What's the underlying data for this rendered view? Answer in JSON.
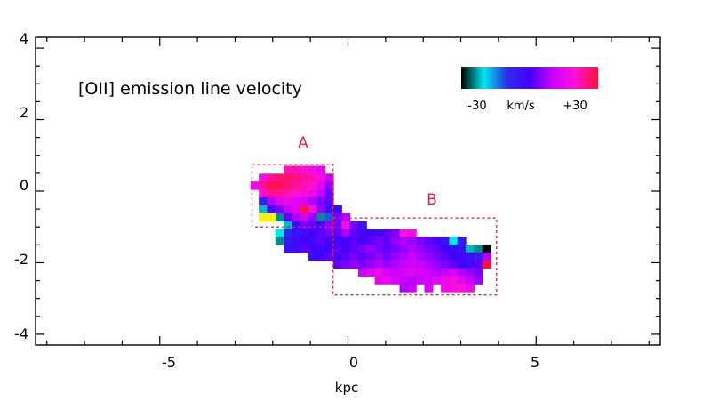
{
  "chart_data": {
    "type": "heatmap",
    "title": "[OII] emission line velocity",
    "xlabel": "kpc",
    "ylabel": "",
    "xlim": [
      -8.3,
      8.3
    ],
    "ylim": [
      -4.3,
      4.3
    ],
    "x_ticks": [
      "-5",
      "0",
      "5"
    ],
    "y_ticks": [
      "4",
      "2",
      "0",
      "-2",
      "-4"
    ],
    "colorbar": {
      "labels": [
        "-30",
        "km/s",
        "+30"
      ],
      "colors": [
        "#000000",
        "#00e8f0",
        "#2d2de6",
        "#4400ff",
        "#cc00ff",
        "#ff10d8",
        "#ff1133"
      ],
      "range": [
        -30,
        30
      ]
    },
    "regions": [
      {
        "label": "A",
        "x0": -2.55,
        "x1": -0.4,
        "y0": -1.0,
        "y1": 0.75,
        "color": "#e8253c"
      },
      {
        "label": "B",
        "x0": -0.4,
        "x1": 3.95,
        "y0": -2.9,
        "y1": -0.75,
        "color": "#e8253c"
      }
    ],
    "pixel_size_kpc": 0.22,
    "velocity_map": [
      {
        "x": -1.6,
        "y": 0.6,
        "v": 22
      },
      {
        "x": -1.38,
        "y": 0.6,
        "v": 22
      },
      {
        "x": -1.16,
        "y": 0.6,
        "v": 20
      },
      {
        "x": -0.94,
        "y": 0.6,
        "v": 18
      },
      {
        "x": -0.72,
        "y": 0.6,
        "v": 14
      },
      {
        "x": -2.26,
        "y": 0.38,
        "v": 18
      },
      {
        "x": -2.04,
        "y": 0.38,
        "v": 24
      },
      {
        "x": -1.82,
        "y": 0.38,
        "v": 26
      },
      {
        "x": -1.6,
        "y": 0.38,
        "v": 27
      },
      {
        "x": -1.38,
        "y": 0.38,
        "v": 25
      },
      {
        "x": -1.16,
        "y": 0.38,
        "v": 24
      },
      {
        "x": -0.94,
        "y": 0.38,
        "v": 22
      },
      {
        "x": -0.72,
        "y": 0.38,
        "v": 18
      },
      {
        "x": -0.5,
        "y": 0.38,
        "v": 10
      },
      {
        "x": -2.48,
        "y": 0.16,
        "v": 16
      },
      {
        "x": -2.26,
        "y": 0.16,
        "v": 24
      },
      {
        "x": -2.04,
        "y": 0.16,
        "v": 28
      },
      {
        "x": -1.82,
        "y": 0.16,
        "v": 28
      },
      {
        "x": -1.6,
        "y": 0.16,
        "v": 26
      },
      {
        "x": -1.38,
        "y": 0.16,
        "v": 24
      },
      {
        "x": -1.16,
        "y": 0.16,
        "v": 22
      },
      {
        "x": -0.94,
        "y": 0.16,
        "v": 20
      },
      {
        "x": -0.72,
        "y": 0.16,
        "v": 14
      },
      {
        "x": -0.5,
        "y": 0.16,
        "v": 6
      },
      {
        "x": -2.26,
        "y": -0.06,
        "v": 20
      },
      {
        "x": -2.04,
        "y": -0.06,
        "v": 24
      },
      {
        "x": -1.82,
        "y": -0.06,
        "v": 24
      },
      {
        "x": -1.6,
        "y": -0.06,
        "v": 22
      },
      {
        "x": -1.38,
        "y": -0.06,
        "v": 20
      },
      {
        "x": -1.16,
        "y": -0.06,
        "v": 18
      },
      {
        "x": -0.94,
        "y": -0.06,
        "v": 16
      },
      {
        "x": -0.72,
        "y": -0.06,
        "v": 10
      },
      {
        "x": -0.5,
        "y": -0.06,
        "v": 2
      },
      {
        "x": -2.26,
        "y": -0.28,
        "v": -8
      },
      {
        "x": -2.04,
        "y": -0.28,
        "v": 8
      },
      {
        "x": -1.82,
        "y": -0.28,
        "v": 14
      },
      {
        "x": -1.6,
        "y": -0.28,
        "v": 16
      },
      {
        "x": -1.38,
        "y": -0.28,
        "v": 14
      },
      {
        "x": -1.16,
        "y": -0.28,
        "v": 12
      },
      {
        "x": -0.94,
        "y": -0.28,
        "v": 8
      },
      {
        "x": -0.72,
        "y": -0.28,
        "v": 4
      },
      {
        "x": -0.5,
        "y": -0.28,
        "v": 2
      },
      {
        "x": -2.26,
        "y": -0.5,
        "v": -22
      },
      {
        "x": -2.04,
        "y": -0.5,
        "v": -4
      },
      {
        "x": -1.82,
        "y": -0.5,
        "v": 4
      },
      {
        "x": -1.6,
        "y": -0.5,
        "v": 10
      },
      {
        "x": -1.38,
        "y": -0.5,
        "v": 14
      },
      {
        "x": -1.16,
        "y": -0.5,
        "v": 28
      },
      {
        "x": -0.94,
        "y": -0.5,
        "v": 18
      },
      {
        "x": -0.72,
        "y": -0.5,
        "v": 6
      },
      {
        "x": -0.5,
        "y": -0.5,
        "v": -4
      },
      {
        "x": -0.28,
        "y": -0.5,
        "v": -2
      },
      {
        "x": -2.04,
        "y": -0.72,
        "v": -6
      },
      {
        "x": -1.82,
        "y": -0.72,
        "v": -24
      },
      {
        "x": -1.6,
        "y": -0.72,
        "v": 2
      },
      {
        "x": -1.38,
        "y": -0.72,
        "v": 8
      },
      {
        "x": -1.16,
        "y": -0.72,
        "v": 12
      },
      {
        "x": -0.94,
        "y": -0.72,
        "v": 6
      },
      {
        "x": -0.72,
        "y": -0.72,
        "v": -24
      },
      {
        "x": -0.5,
        "y": -0.72,
        "v": -12
      },
      {
        "x": -0.28,
        "y": -0.72,
        "v": 4
      },
      {
        "x": -0.06,
        "y": -0.72,
        "v": 8
      },
      {
        "x": -1.6,
        "y": -0.94,
        "v": -22
      },
      {
        "x": -1.38,
        "y": -0.94,
        "v": -2
      },
      {
        "x": -1.16,
        "y": -0.94,
        "v": 4
      },
      {
        "x": -0.94,
        "y": -0.94,
        "v": 2
      },
      {
        "x": -0.72,
        "y": -0.94,
        "v": -2
      },
      {
        "x": -0.5,
        "y": -0.94,
        "v": 6
      },
      {
        "x": -0.28,
        "y": -0.94,
        "v": 4
      },
      {
        "x": -0.06,
        "y": -0.94,
        "v": 18
      },
      {
        "x": 0.16,
        "y": -0.94,
        "v": 4
      },
      {
        "x": 0.38,
        "y": -0.94,
        "v": -4
      },
      {
        "x": -1.82,
        "y": -1.16,
        "v": -20
      },
      {
        "x": -1.6,
        "y": -1.16,
        "v": -8
      },
      {
        "x": -1.38,
        "y": -1.16,
        "v": -4
      },
      {
        "x": -1.16,
        "y": -1.16,
        "v": -2
      },
      {
        "x": -0.94,
        "y": -1.16,
        "v": 0
      },
      {
        "x": -0.72,
        "y": -1.16,
        "v": 2
      },
      {
        "x": -0.5,
        "y": -1.16,
        "v": 4
      },
      {
        "x": -0.28,
        "y": -1.16,
        "v": 2
      },
      {
        "x": -0.06,
        "y": -1.16,
        "v": 8
      },
      {
        "x": 0.16,
        "y": -1.16,
        "v": 2
      },
      {
        "x": 0.38,
        "y": -1.16,
        "v": -2
      },
      {
        "x": 0.6,
        "y": -1.16,
        "v": 0
      },
      {
        "x": 0.82,
        "y": -1.16,
        "v": -2
      },
      {
        "x": 1.04,
        "y": -1.16,
        "v": 2
      },
      {
        "x": 1.26,
        "y": -1.16,
        "v": 4
      },
      {
        "x": 1.48,
        "y": -1.16,
        "v": 20
      },
      {
        "x": 1.7,
        "y": -1.16,
        "v": 18
      },
      {
        "x": -1.82,
        "y": -1.38,
        "v": -24
      },
      {
        "x": -1.6,
        "y": -1.38,
        "v": -6
      },
      {
        "x": -1.38,
        "y": -1.38,
        "v": -2
      },
      {
        "x": -1.16,
        "y": -1.38,
        "v": 0
      },
      {
        "x": -0.94,
        "y": -1.38,
        "v": -2
      },
      {
        "x": -0.72,
        "y": -1.38,
        "v": 2
      },
      {
        "x": -0.5,
        "y": -1.38,
        "v": 0
      },
      {
        "x": -0.28,
        "y": -1.38,
        "v": -2
      },
      {
        "x": -0.06,
        "y": -1.38,
        "v": 0
      },
      {
        "x": 0.16,
        "y": -1.38,
        "v": 2
      },
      {
        "x": 0.38,
        "y": -1.38,
        "v": 0
      },
      {
        "x": 0.6,
        "y": -1.38,
        "v": 2
      },
      {
        "x": 0.82,
        "y": -1.38,
        "v": 4
      },
      {
        "x": 1.04,
        "y": -1.38,
        "v": 2
      },
      {
        "x": 1.26,
        "y": -1.38,
        "v": 6
      },
      {
        "x": 1.48,
        "y": -1.38,
        "v": 8
      },
      {
        "x": 1.7,
        "y": -1.38,
        "v": 6
      },
      {
        "x": 1.92,
        "y": -1.38,
        "v": 4
      },
      {
        "x": 2.14,
        "y": -1.38,
        "v": 2
      },
      {
        "x": 2.36,
        "y": -1.38,
        "v": 0
      },
      {
        "x": 2.58,
        "y": -1.38,
        "v": -4
      },
      {
        "x": 2.8,
        "y": -1.38,
        "v": -20
      },
      {
        "x": 3.02,
        "y": -1.38,
        "v": -6
      },
      {
        "x": -1.6,
        "y": -1.6,
        "v": -4
      },
      {
        "x": -1.38,
        "y": -1.6,
        "v": -2
      },
      {
        "x": -1.16,
        "y": -1.6,
        "v": 2
      },
      {
        "x": -0.94,
        "y": -1.6,
        "v": 0
      },
      {
        "x": -0.72,
        "y": -1.6,
        "v": -2
      },
      {
        "x": -0.5,
        "y": -1.6,
        "v": 0
      },
      {
        "x": -0.28,
        "y": -1.6,
        "v": 2
      },
      {
        "x": -0.06,
        "y": -1.6,
        "v": 0
      },
      {
        "x": 0.16,
        "y": -1.6,
        "v": 2
      },
      {
        "x": 0.38,
        "y": -1.6,
        "v": 4
      },
      {
        "x": 0.6,
        "y": -1.6,
        "v": 6
      },
      {
        "x": 0.82,
        "y": -1.6,
        "v": 4
      },
      {
        "x": 1.04,
        "y": -1.6,
        "v": 2
      },
      {
        "x": 1.26,
        "y": -1.6,
        "v": 4
      },
      {
        "x": 1.48,
        "y": -1.6,
        "v": 6
      },
      {
        "x": 1.7,
        "y": -1.6,
        "v": 8
      },
      {
        "x": 1.92,
        "y": -1.6,
        "v": 6
      },
      {
        "x": 2.14,
        "y": -1.6,
        "v": 4
      },
      {
        "x": 2.36,
        "y": -1.6,
        "v": 2
      },
      {
        "x": 2.58,
        "y": -1.6,
        "v": 0
      },
      {
        "x": 2.8,
        "y": -1.6,
        "v": -2
      },
      {
        "x": 3.02,
        "y": -1.6,
        "v": -4
      },
      {
        "x": 3.24,
        "y": -1.6,
        "v": -22
      },
      {
        "x": 3.46,
        "y": -1.6,
        "v": -24
      },
      {
        "x": 3.68,
        "y": -1.6,
        "v": -30
      },
      {
        "x": -0.94,
        "y": -1.82,
        "v": -2
      },
      {
        "x": -0.72,
        "y": -1.82,
        "v": 0
      },
      {
        "x": -0.5,
        "y": -1.82,
        "v": 2
      },
      {
        "x": -0.28,
        "y": -1.82,
        "v": 0
      },
      {
        "x": -0.06,
        "y": -1.82,
        "v": 2
      },
      {
        "x": 0.16,
        "y": -1.82,
        "v": 4
      },
      {
        "x": 0.38,
        "y": -1.82,
        "v": 2
      },
      {
        "x": 0.6,
        "y": -1.82,
        "v": 4
      },
      {
        "x": 0.82,
        "y": -1.82,
        "v": 6
      },
      {
        "x": 1.04,
        "y": -1.82,
        "v": 4
      },
      {
        "x": 1.26,
        "y": -1.82,
        "v": 6
      },
      {
        "x": 1.48,
        "y": -1.82,
        "v": 8
      },
      {
        "x": 1.7,
        "y": -1.82,
        "v": 10
      },
      {
        "x": 1.92,
        "y": -1.82,
        "v": 8
      },
      {
        "x": 2.14,
        "y": -1.82,
        "v": 6
      },
      {
        "x": 2.36,
        "y": -1.82,
        "v": 4
      },
      {
        "x": 2.58,
        "y": -1.82,
        "v": 2
      },
      {
        "x": 2.8,
        "y": -1.82,
        "v": 0
      },
      {
        "x": 3.02,
        "y": -1.82,
        "v": -2
      },
      {
        "x": 3.24,
        "y": -1.82,
        "v": -4
      },
      {
        "x": 3.46,
        "y": -1.82,
        "v": -6
      },
      {
        "x": 3.68,
        "y": -1.82,
        "v": 8
      },
      {
        "x": -0.28,
        "y": -2.04,
        "v": 2
      },
      {
        "x": -0.06,
        "y": -2.04,
        "v": 4
      },
      {
        "x": 0.16,
        "y": -2.04,
        "v": 6
      },
      {
        "x": 0.38,
        "y": -2.04,
        "v": 4
      },
      {
        "x": 0.6,
        "y": -2.04,
        "v": 6
      },
      {
        "x": 0.82,
        "y": -2.04,
        "v": 8
      },
      {
        "x": 1.04,
        "y": -2.04,
        "v": 6
      },
      {
        "x": 1.26,
        "y": -2.04,
        "v": 8
      },
      {
        "x": 1.48,
        "y": -2.04,
        "v": 10
      },
      {
        "x": 1.7,
        "y": -2.04,
        "v": 12
      },
      {
        "x": 1.92,
        "y": -2.04,
        "v": 10
      },
      {
        "x": 2.14,
        "y": -2.04,
        "v": 8
      },
      {
        "x": 2.36,
        "y": -2.04,
        "v": 6
      },
      {
        "x": 2.58,
        "y": -2.04,
        "v": 4
      },
      {
        "x": 2.8,
        "y": -2.04,
        "v": 2
      },
      {
        "x": 3.02,
        "y": -2.04,
        "v": 0
      },
      {
        "x": 3.24,
        "y": -2.04,
        "v": -2
      },
      {
        "x": 3.46,
        "y": -2.04,
        "v": 2
      },
      {
        "x": 3.68,
        "y": -2.04,
        "v": 30
      },
      {
        "x": 0.38,
        "y": -2.26,
        "v": 10
      },
      {
        "x": 0.6,
        "y": -2.26,
        "v": 14
      },
      {
        "x": 0.82,
        "y": -2.26,
        "v": 16
      },
      {
        "x": 1.04,
        "y": -2.26,
        "v": 12
      },
      {
        "x": 1.26,
        "y": -2.26,
        "v": 10
      },
      {
        "x": 1.48,
        "y": -2.26,
        "v": 12
      },
      {
        "x": 1.7,
        "y": -2.26,
        "v": 14
      },
      {
        "x": 1.92,
        "y": -2.26,
        "v": 12
      },
      {
        "x": 2.14,
        "y": -2.26,
        "v": 10
      },
      {
        "x": 2.36,
        "y": -2.26,
        "v": 8
      },
      {
        "x": 2.58,
        "y": -2.26,
        "v": 10
      },
      {
        "x": 2.8,
        "y": -2.26,
        "v": 12
      },
      {
        "x": 3.02,
        "y": -2.26,
        "v": 8
      },
      {
        "x": 3.24,
        "y": -2.26,
        "v": 6
      },
      {
        "x": 3.46,
        "y": -2.26,
        "v": 4
      },
      {
        "x": 0.82,
        "y": -2.48,
        "v": 14
      },
      {
        "x": 1.04,
        "y": -2.48,
        "v": 16
      },
      {
        "x": 1.26,
        "y": -2.48,
        "v": 12
      },
      {
        "x": 1.48,
        "y": -2.48,
        "v": 10
      },
      {
        "x": 1.7,
        "y": -2.48,
        "v": 8
      },
      {
        "x": 1.92,
        "y": -2.48,
        "v": 10
      },
      {
        "x": 2.14,
        "y": -2.48,
        "v": 12
      },
      {
        "x": 2.36,
        "y": -2.48,
        "v": 14
      },
      {
        "x": 2.58,
        "y": -2.48,
        "v": 16
      },
      {
        "x": 2.8,
        "y": -2.48,
        "v": 18
      },
      {
        "x": 3.02,
        "y": -2.48,
        "v": 14
      },
      {
        "x": 3.24,
        "y": -2.48,
        "v": 10
      },
      {
        "x": 3.46,
        "y": -2.48,
        "v": 6
      },
      {
        "x": 1.48,
        "y": -2.7,
        "v": 8
      },
      {
        "x": 1.7,
        "y": -2.7,
        "v": 10
      },
      {
        "x": 2.14,
        "y": -2.7,
        "v": 12
      },
      {
        "x": 2.58,
        "y": -2.7,
        "v": 16
      },
      {
        "x": 2.8,
        "y": -2.7,
        "v": 18
      },
      {
        "x": 3.02,
        "y": -2.7,
        "v": 20
      },
      {
        "x": 3.24,
        "y": -2.7,
        "v": 16
      }
    ],
    "flagged_pixels": [
      {
        "x": -2.26,
        "y": -0.72,
        "color": "#f2f20c"
      },
      {
        "x": -2.04,
        "y": -0.72,
        "color": "#f2f20c"
      }
    ]
  }
}
